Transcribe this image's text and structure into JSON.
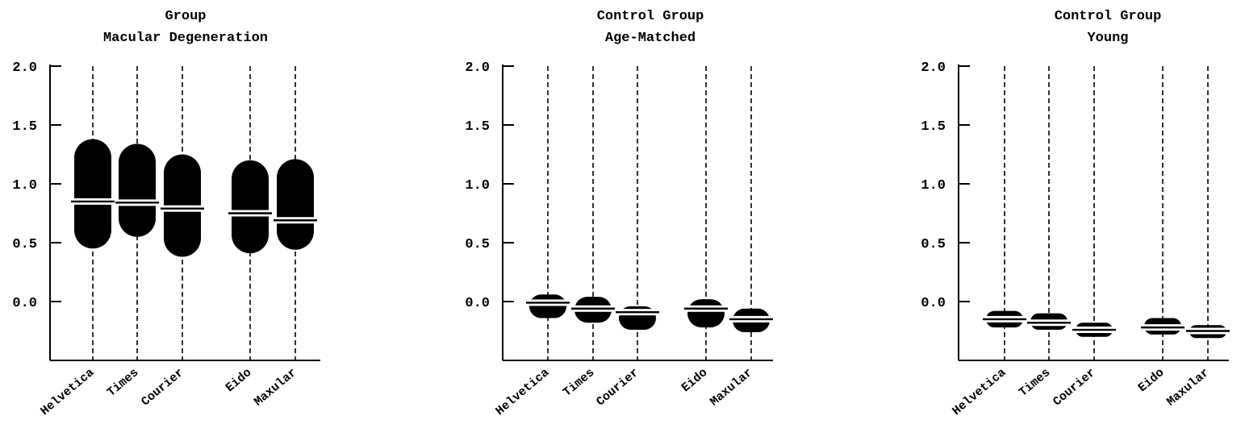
{
  "chart_data": [
    {
      "type": "box",
      "title_lines": [
        "Group",
        "Macular Degeneration"
      ],
      "categories": [
        "Helvetica",
        "Times",
        "Courier",
        "Eido",
        "Maxular"
      ],
      "yticks": [
        "2.0",
        "1.5",
        "1.0",
        "0.5",
        "0.0"
      ],
      "ylim": [
        -0.5,
        2.0
      ],
      "series": [
        {
          "category": "Helvetica",
          "low": 0.45,
          "high": 1.38,
          "median": 0.85
        },
        {
          "category": "Times",
          "low": 0.55,
          "high": 1.34,
          "median": 0.84
        },
        {
          "category": "Courier",
          "low": 0.38,
          "high": 1.25,
          "median": 0.79
        },
        {
          "category": "Eido",
          "low": 0.41,
          "high": 1.2,
          "median": 0.75
        },
        {
          "category": "Maxular",
          "low": 0.44,
          "high": 1.21,
          "median": 0.69
        }
      ]
    },
    {
      "type": "box",
      "title_lines": [
        "Control Group",
        "Age-Matched"
      ],
      "categories": [
        "Helvetica",
        "Times",
        "Courier",
        "Eido",
        "Maxular"
      ],
      "yticks": [
        "2.0",
        "1.5",
        "1.0",
        "0.5",
        "0.0"
      ],
      "ylim": [
        -0.5,
        2.0
      ],
      "series": [
        {
          "category": "Helvetica",
          "low": -0.14,
          "high": 0.06,
          "median": -0.01
        },
        {
          "category": "Times",
          "low": -0.18,
          "high": 0.04,
          "median": -0.06
        },
        {
          "category": "Courier",
          "low": -0.24,
          "high": -0.04,
          "median": -0.09
        },
        {
          "category": "Eido",
          "low": -0.22,
          "high": 0.02,
          "median": -0.06
        },
        {
          "category": "Maxular",
          "low": -0.26,
          "high": -0.06,
          "median": -0.15
        }
      ]
    },
    {
      "type": "box",
      "title_lines": [
        "Control Group",
        "Young"
      ],
      "categories": [
        "Helvetica",
        "Times",
        "Courier",
        "Eido",
        "Maxular"
      ],
      "yticks": [
        "2.0",
        "1.5",
        "1.0",
        "0.5",
        "0.0"
      ],
      "ylim": [
        -0.5,
        2.0
      ],
      "series": [
        {
          "category": "Helvetica",
          "low": -0.22,
          "high": -0.08,
          "median": -0.15
        },
        {
          "category": "Times",
          "low": -0.24,
          "high": -0.1,
          "median": -0.18
        },
        {
          "category": "Courier",
          "low": -0.3,
          "high": -0.18,
          "median": -0.24
        },
        {
          "category": "Eido",
          "low": -0.28,
          "high": -0.14,
          "median": -0.22
        },
        {
          "category": "Maxular",
          "low": -0.31,
          "high": -0.2,
          "median": -0.25
        }
      ]
    }
  ]
}
